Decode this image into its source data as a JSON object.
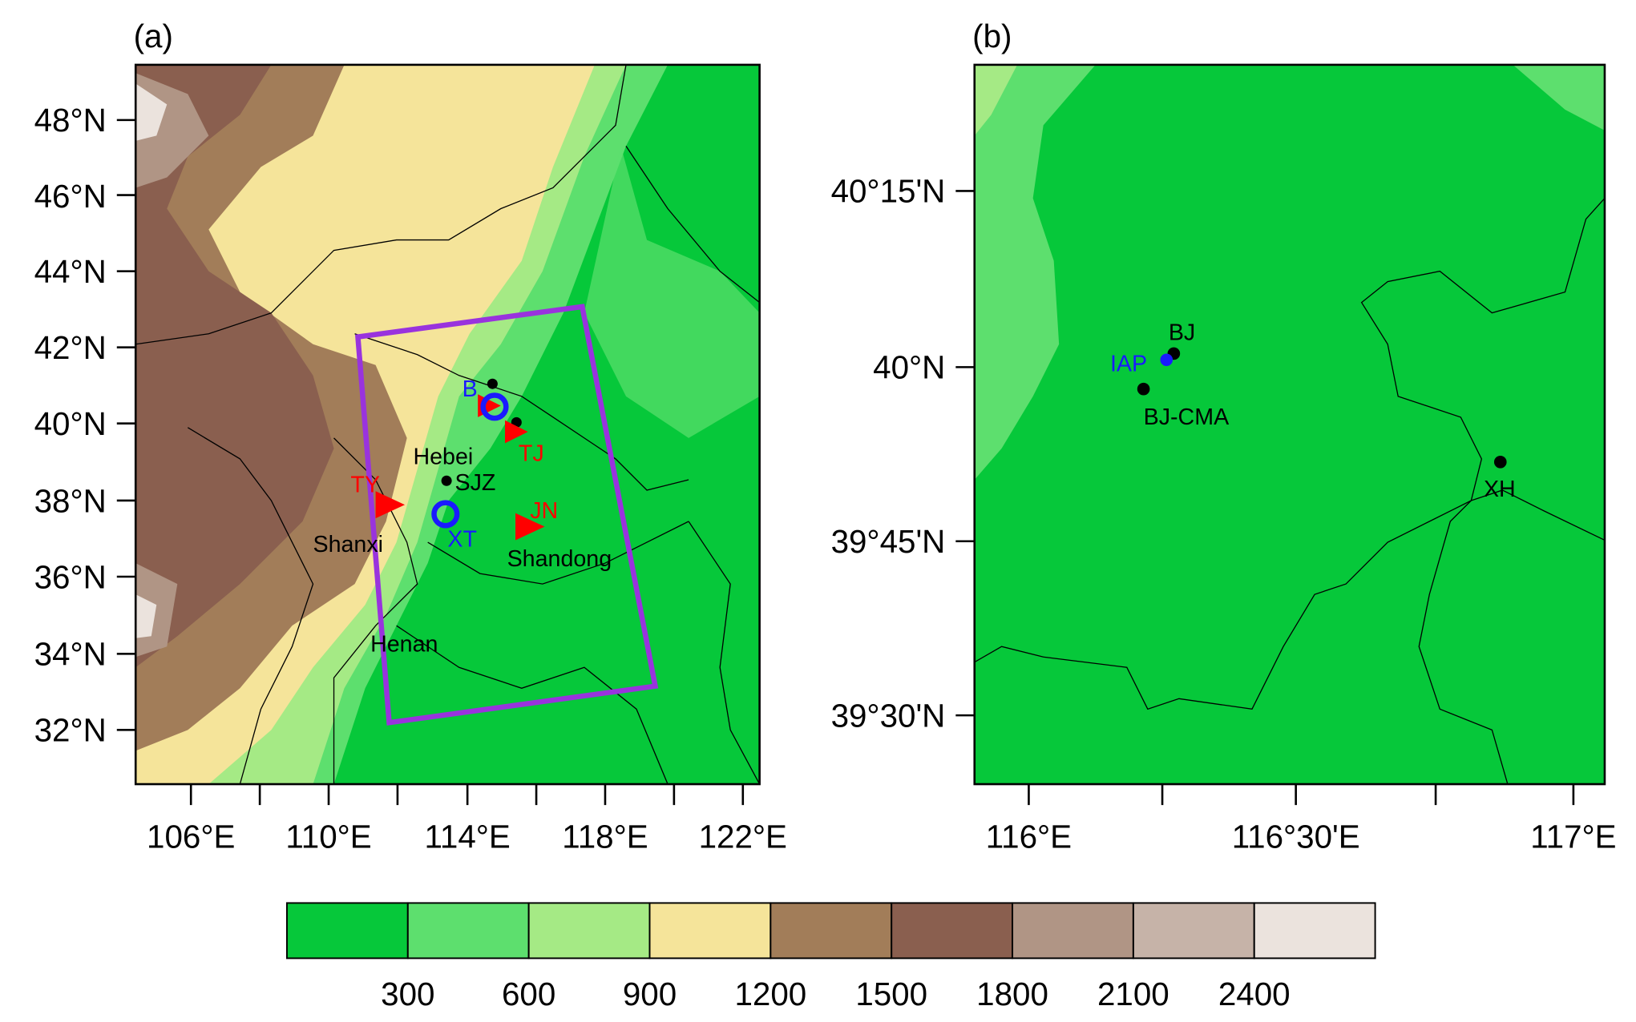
{
  "panels": [
    {
      "label": "(a)",
      "yticks": [
        "48°N",
        "46°N",
        "44°N",
        "42°N",
        "40°N",
        "38°N",
        "36°N",
        "34°N",
        "32°N"
      ],
      "xticks": [
        "106°E",
        "110°E",
        "114°E",
        "118°E",
        "122°E"
      ],
      "places": [
        "B",
        "TJ",
        "TY",
        "SJZ",
        "Hebei",
        "JN",
        "XT",
        "Shanxi",
        "Shandong",
        "Henan"
      ]
    },
    {
      "label": "(b)",
      "yticks": [
        "40°15'N",
        "40°N",
        "39°45'N",
        "39°30'N"
      ],
      "xticks": [
        "116°E",
        "116°30'E",
        "117°E"
      ],
      "places": [
        "BJ",
        "IAP",
        "BJ-CMA",
        "XH"
      ]
    }
  ],
  "colorbar": {
    "colors": [
      "#06c83a",
      "#5ddf6e",
      "#a5ea85",
      "#f5e49a",
      "#a27d59",
      "#8a5f4f",
      "#b09585",
      "#c6b3a8",
      "#ebe3dd"
    ],
    "labels": [
      "300",
      "600",
      "900",
      "1200",
      "1500",
      "1800",
      "2100",
      "2400"
    ]
  }
}
